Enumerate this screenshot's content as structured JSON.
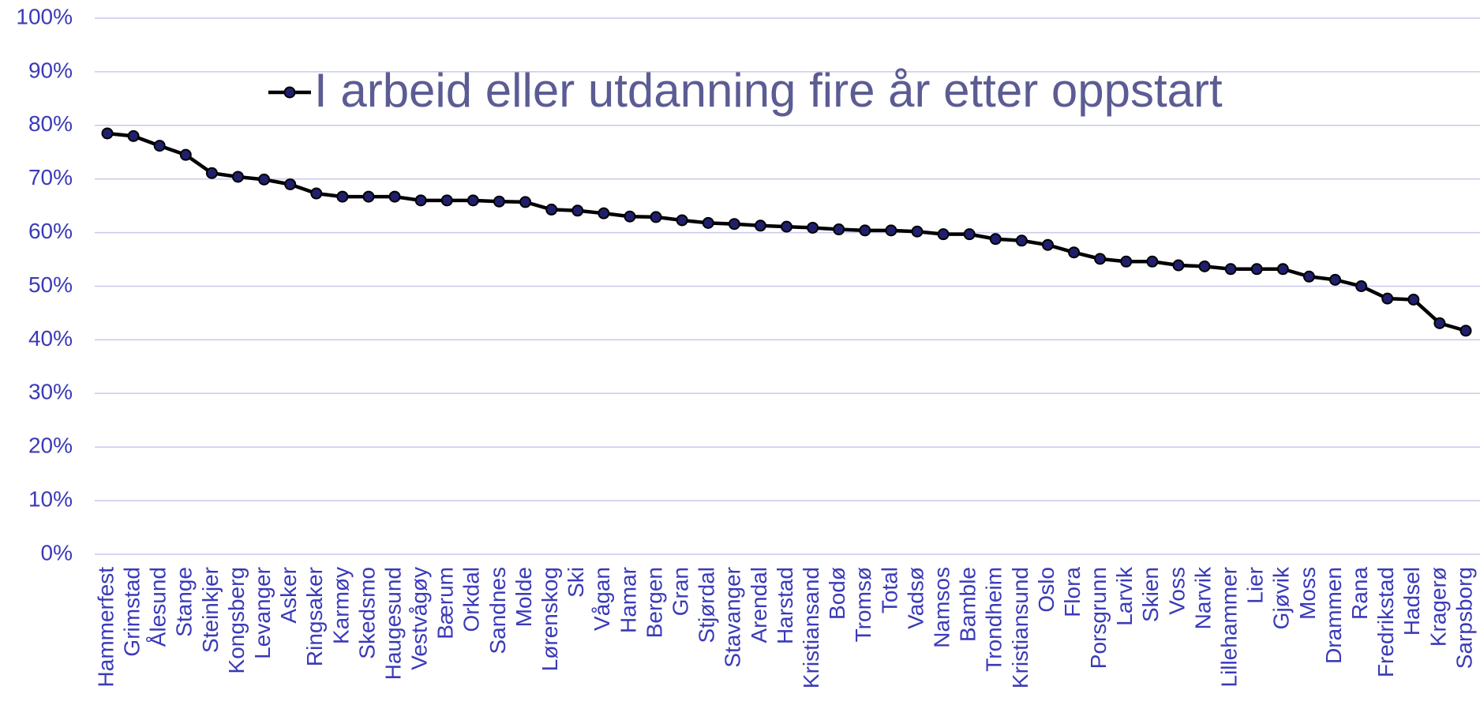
{
  "chart_data": {
    "type": "line",
    "categories": [
      "Hammerfest",
      "Grimstad",
      "Ålesund",
      "Stange",
      "Steinkjer",
      "Kongsberg",
      "Levanger",
      "Asker",
      "Ringsaker",
      "Karmøy",
      "Skedsmo",
      "Haugesund",
      "Vestvågøy",
      "Bærum",
      "Orkdal",
      "Sandnes",
      "Molde",
      "Lørenskog",
      "Ski",
      "Vågan",
      "Hamar",
      "Bergen",
      "Gran",
      "Stjørdal",
      "Stavanger",
      "Arendal",
      "Harstad",
      "Kristiansand",
      "Bodø",
      "Tromsø",
      "Total",
      "Vadsø",
      "Namsos",
      "Bamble",
      "Trondheim",
      "Kristiansund",
      "Oslo",
      "Flora",
      "Porsgrunn",
      "Larvik",
      "Skien",
      "Voss",
      "Narvik",
      "Lillehammer",
      "Lier",
      "Gjøvik",
      "Moss",
      "Drammen",
      "Rana",
      "Fredrikstad",
      "Hadsel",
      "Kragerø",
      "Sarpsborg"
    ],
    "series": [
      {
        "name": "I arbeid eller utdanning fire år etter oppstart",
        "color": "#000000",
        "marker_color": "#1f1f6b",
        "values": [
          78.5,
          78,
          76.2,
          74.5,
          71.1,
          70.4,
          69.9,
          69,
          67.3,
          66.7,
          66.7,
          66.7,
          66,
          66,
          66,
          65.8,
          65.7,
          64.3,
          64.1,
          63.6,
          63,
          62.9,
          62.3,
          61.8,
          61.6,
          61.3,
          61.1,
          60.9,
          60.6,
          60.4,
          60.4,
          60.2,
          59.7,
          59.7,
          58.8,
          58.5,
          57.7,
          56.3,
          55.1,
          54.6,
          54.6,
          53.9,
          53.7,
          53.2,
          53.2,
          53.2,
          51.8,
          51.2,
          50,
          47.7,
          47.5,
          43.1,
          41.7
        ]
      }
    ],
    "ylim": [
      0,
      100
    ],
    "yticks": [
      {
        "value": 0,
        "label": "0%"
      },
      {
        "value": 10,
        "label": "10%"
      },
      {
        "value": 20,
        "label": "20%"
      },
      {
        "value": 30,
        "label": "30%"
      },
      {
        "value": 40,
        "label": "40%"
      },
      {
        "value": 50,
        "label": "50%"
      },
      {
        "value": 60,
        "label": "60%"
      },
      {
        "value": 70,
        "label": "70%"
      },
      {
        "value": 80,
        "label": "80%"
      },
      {
        "value": 90,
        "label": "90%"
      },
      {
        "value": 100,
        "label": "100%"
      }
    ],
    "grid": true,
    "grid_color": "#c9c9ec",
    "legend": "top"
  }
}
